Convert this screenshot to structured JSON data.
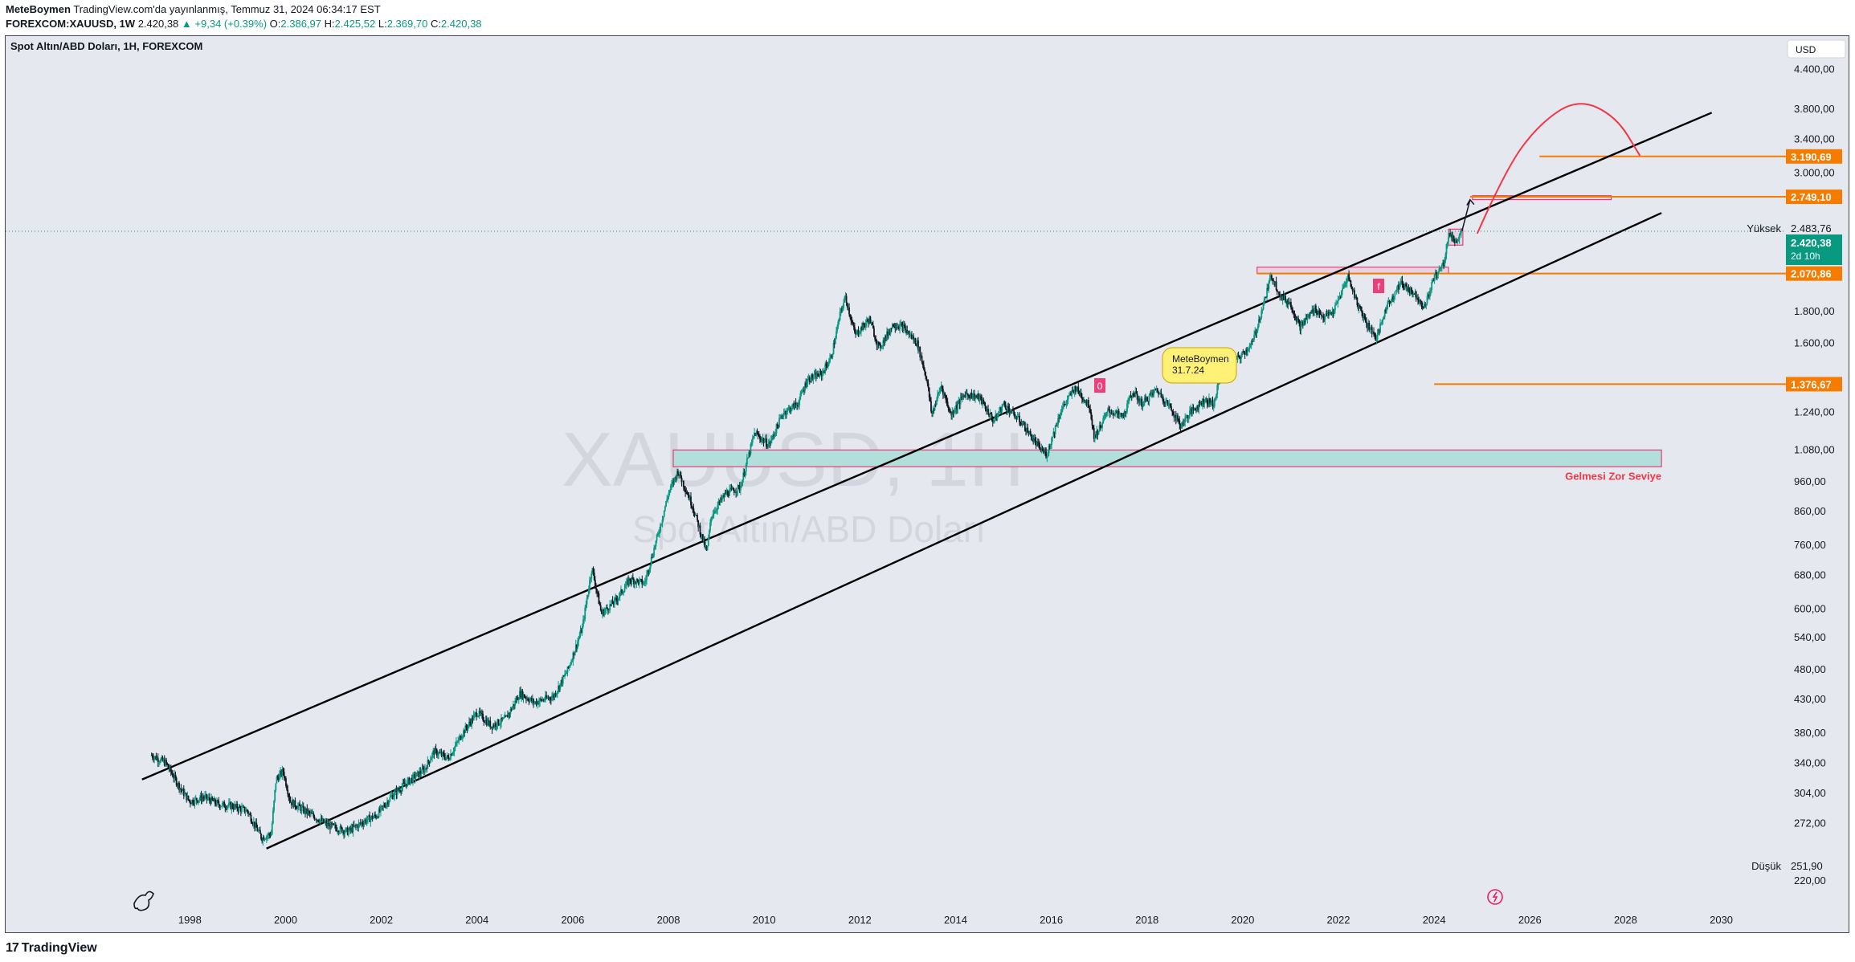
{
  "header": {
    "author": "MeteBoymen",
    "published_text": "TradingView.com'da yayınlanmış, Temmuz 31, 2024 06:34:17 EST",
    "symbol": "FOREXCOM:XAUUSD, 1W",
    "last": "2.420,38",
    "change": "▲ +9,34 (+0.39%)",
    "o_label": "O:",
    "o_value": "2.386,97",
    "h_label": "H:",
    "h_value": "2.425,52",
    "l_label": "L:",
    "l_value": "2.369,70",
    "c_label": "C:",
    "c_value": "2.420,38"
  },
  "chart": {
    "title": "Spot Altın/ABD Doları, 1H, FOREXCOM",
    "watermark_symbol": "XAUUSD, 1H",
    "watermark_name": "Spot Altın/ABD Doları",
    "currency": "USD",
    "zone_label": "Gelmesi Zor Seviye",
    "note_line1": "MeteBoymen",
    "note_line2": "31.7.24",
    "high_label": "Yüksek",
    "high_value": "2.483,76",
    "low_label": "Düşük",
    "low_value": "251,90",
    "current_price": "2.420,38",
    "countdown": "2d 10h",
    "marker_o": "0",
    "marker_f": "f"
  },
  "colors": {
    "background": "#e6e8f0",
    "text": "#131722",
    "up": "#089981",
    "orange": "#f57c00",
    "red_curve": "#f23645",
    "zone_fill": "#b2dfdb",
    "zone_border": "#e91e63",
    "note_fill": "#fff176",
    "current_price_bg": "#089981"
  },
  "chart_data": {
    "type": "candlestick",
    "title": "Spot Altın/ABD Doları, 1H, FOREXCOM",
    "y_scale": "log",
    "currency": "USD",
    "x_ticks": [
      "1998",
      "2000",
      "2002",
      "2004",
      "2006",
      "2008",
      "2010",
      "2012",
      "2014",
      "2016",
      "2018",
      "2020",
      "2022",
      "2024",
      "2026",
      "2028",
      "2030"
    ],
    "y_ticks": [
      {
        "value": 4400,
        "label": "4.400,00"
      },
      {
        "value": 3800,
        "label": "3.800,00"
      },
      {
        "value": 3400,
        "label": "3.400,00"
      },
      {
        "value": 3000,
        "label": "3.000,00"
      },
      {
        "value": 1800,
        "label": "1.800,00"
      },
      {
        "value": 1600,
        "label": "1.600,00"
      },
      {
        "value": 1240,
        "label": "1.240,00"
      },
      {
        "value": 1080,
        "label": "1.080,00"
      },
      {
        "value": 960,
        "label": "960,00"
      },
      {
        "value": 860,
        "label": "860,00"
      },
      {
        "value": 760,
        "label": "760,00"
      },
      {
        "value": 680,
        "label": "680,00"
      },
      {
        "value": 600,
        "label": "600,00"
      },
      {
        "value": 540,
        "label": "540,00"
      },
      {
        "value": 480,
        "label": "480,00"
      },
      {
        "value": 430,
        "label": "430,00"
      },
      {
        "value": 380,
        "label": "380,00"
      },
      {
        "value": 340,
        "label": "340,00"
      },
      {
        "value": 304,
        "label": "304,00"
      },
      {
        "value": 272,
        "label": "272,00"
      },
      {
        "value": 220,
        "label": "220,00"
      }
    ],
    "y_range": [
      205,
      4800
    ],
    "x_range": [
      1994.15,
      2031.35
    ],
    "price_path": [
      [
        1997.2,
        350
      ],
      [
        1997.5,
        340
      ],
      [
        1997.8,
        310
      ],
      [
        1998.0,
        295
      ],
      [
        1998.3,
        300
      ],
      [
        1998.6,
        292
      ],
      [
        1998.9,
        290
      ],
      [
        1999.2,
        285
      ],
      [
        1999.5,
        258
      ],
      [
        1999.7,
        262
      ],
      [
        1999.8,
        320
      ],
      [
        1999.95,
        330
      ],
      [
        2000.1,
        295
      ],
      [
        2000.5,
        282
      ],
      [
        2000.9,
        270
      ],
      [
        2001.3,
        264
      ],
      [
        2001.7,
        276
      ],
      [
        2001.9,
        280
      ],
      [
        2002.2,
        300
      ],
      [
        2002.5,
        315
      ],
      [
        2002.9,
        332
      ],
      [
        2003.1,
        355
      ],
      [
        2003.4,
        346
      ],
      [
        2003.7,
        380
      ],
      [
        2004.0,
        410
      ],
      [
        2004.3,
        390
      ],
      [
        2004.6,
        400
      ],
      [
        2004.9,
        440
      ],
      [
        2005.2,
        425
      ],
      [
        2005.6,
        435
      ],
      [
        2005.9,
        480
      ],
      [
        2006.2,
        560
      ],
      [
        2006.4,
        700
      ],
      [
        2006.6,
        590
      ],
      [
        2006.9,
        620
      ],
      [
        2007.2,
        670
      ],
      [
        2007.5,
        660
      ],
      [
        2007.8,
        800
      ],
      [
        2008.0,
        920
      ],
      [
        2008.2,
        1000
      ],
      [
        2008.5,
        880
      ],
      [
        2008.8,
        740
      ],
      [
        2008.9,
        850
      ],
      [
        2009.2,
        920
      ],
      [
        2009.5,
        940
      ],
      [
        2009.8,
        1150
      ],
      [
        2010.1,
        1100
      ],
      [
        2010.4,
        1240
      ],
      [
        2010.7,
        1280
      ],
      [
        2010.9,
        1400
      ],
      [
        2011.2,
        1430
      ],
      [
        2011.4,
        1520
      ],
      [
        2011.6,
        1800
      ],
      [
        2011.7,
        1900
      ],
      [
        2011.9,
        1650
      ],
      [
        2012.2,
        1750
      ],
      [
        2012.4,
        1570
      ],
      [
        2012.7,
        1720
      ],
      [
        2012.9,
        1700
      ],
      [
        2013.2,
        1600
      ],
      [
        2013.4,
        1400
      ],
      [
        2013.5,
        1230
      ],
      [
        2013.7,
        1370
      ],
      [
        2013.9,
        1230
      ],
      [
        2014.2,
        1330
      ],
      [
        2014.5,
        1310
      ],
      [
        2014.8,
        1200
      ],
      [
        2015.0,
        1280
      ],
      [
        2015.4,
        1190
      ],
      [
        2015.7,
        1100
      ],
      [
        2015.9,
        1060
      ],
      [
        2016.2,
        1250
      ],
      [
        2016.5,
        1360
      ],
      [
        2016.8,
        1270
      ],
      [
        2016.9,
        1130
      ],
      [
        2017.2,
        1250
      ],
      [
        2017.5,
        1220
      ],
      [
        2017.7,
        1340
      ],
      [
        2017.9,
        1280
      ],
      [
        2018.2,
        1350
      ],
      [
        2018.5,
        1260
      ],
      [
        2018.7,
        1180
      ],
      [
        2018.9,
        1240
      ],
      [
        2019.2,
        1300
      ],
      [
        2019.4,
        1280
      ],
      [
        2019.6,
        1500
      ],
      [
        2019.9,
        1510
      ],
      [
        2020.2,
        1600
      ],
      [
        2020.3,
        1700
      ],
      [
        2020.6,
        2060
      ],
      [
        2020.8,
        1900
      ],
      [
        2021.0,
        1850
      ],
      [
        2021.2,
        1700
      ],
      [
        2021.5,
        1820
      ],
      [
        2021.7,
        1760
      ],
      [
        2021.9,
        1800
      ],
      [
        2022.2,
        2050
      ],
      [
        2022.4,
        1850
      ],
      [
        2022.6,
        1720
      ],
      [
        2022.8,
        1630
      ],
      [
        2023.0,
        1830
      ],
      [
        2023.3,
        2000
      ],
      [
        2023.6,
        1920
      ],
      [
        2023.8,
        1830
      ],
      [
        2024.0,
        2040
      ],
      [
        2024.2,
        2150
      ],
      [
        2024.3,
        2400
      ],
      [
        2024.45,
        2330
      ],
      [
        2024.58,
        2420
      ]
    ],
    "channel_upper": [
      [
        1997.0,
        320
      ],
      [
        2029.8,
        3750
      ]
    ],
    "channel_lower": [
      [
        1999.6,
        248
      ],
      [
        2028.75,
        2590
      ]
    ],
    "projection_arrow": [
      [
        2024.58,
        2420
      ],
      [
        2024.75,
        2720
      ]
    ],
    "projection_arc": [
      [
        2024.9,
        2400
      ],
      [
        2025.5,
        3050
      ],
      [
        2026.2,
        3600
      ],
      [
        2027.0,
        3950
      ],
      [
        2027.8,
        3700
      ],
      [
        2028.3,
        3200
      ]
    ],
    "horizontal_levels": [
      {
        "label": "3.190,69",
        "value": 3190.69,
        "from": 2026.2
      },
      {
        "label": "2.749,10",
        "value": 2749.1,
        "from": 2024.75
      },
      {
        "label": "2.070,86",
        "value": 2070.86,
        "from": 2020.3
      },
      {
        "label": "1.376,67",
        "value": 1376.67,
        "from": 2024.0
      }
    ],
    "zones": [
      {
        "label": "Gelmesi Zor Seviye",
        "low": 1015,
        "high": 1080,
        "from": 2008.1,
        "to": 2028.75
      },
      {
        "label": "",
        "low": 2070,
        "high": 2120,
        "from": 2020.3,
        "to": 2024.3
      },
      {
        "label": "",
        "low": 2720,
        "high": 2760,
        "from": 2024.8,
        "to": 2027.7
      },
      {
        "label": "",
        "low": 2300,
        "high": 2440,
        "from": 2024.3,
        "to": 2024.6
      }
    ],
    "high": 2483.76,
    "low": 251.9,
    "last": 2420.38
  }
}
